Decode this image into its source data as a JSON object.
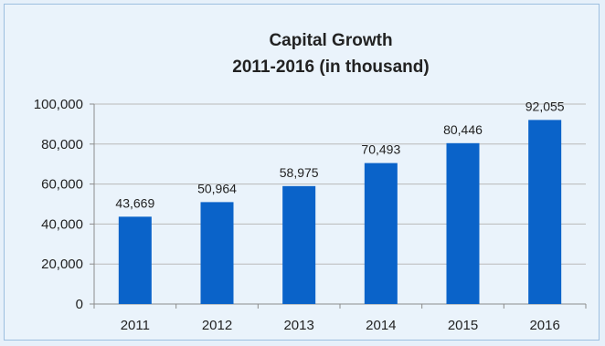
{
  "chart_data": {
    "type": "bar",
    "title": "Capital Growth",
    "subtitle": "2011-2016 (in thousand)",
    "xlabel": "",
    "ylabel": "",
    "categories": [
      "2011",
      "2012",
      "2013",
      "2014",
      "2015",
      "2016"
    ],
    "values": [
      43669,
      50964,
      58975,
      70493,
      80446,
      92055
    ],
    "value_labels": [
      "43,669",
      "50,964",
      "58,975",
      "70,493",
      "80,446",
      "92,055"
    ],
    "ylim": [
      0,
      100000
    ],
    "y_ticks": [
      0,
      20000,
      40000,
      60000,
      80000,
      100000
    ],
    "y_tick_labels": [
      "0",
      "20,000",
      "40,000",
      "60,000",
      "80,000",
      "100,000"
    ],
    "grid": true,
    "legend": "none",
    "colors": {
      "bar": "#0a63c9",
      "grid": "#b9b9b9",
      "axis": "#8c8c8c",
      "background": "#eaf3fb"
    }
  }
}
